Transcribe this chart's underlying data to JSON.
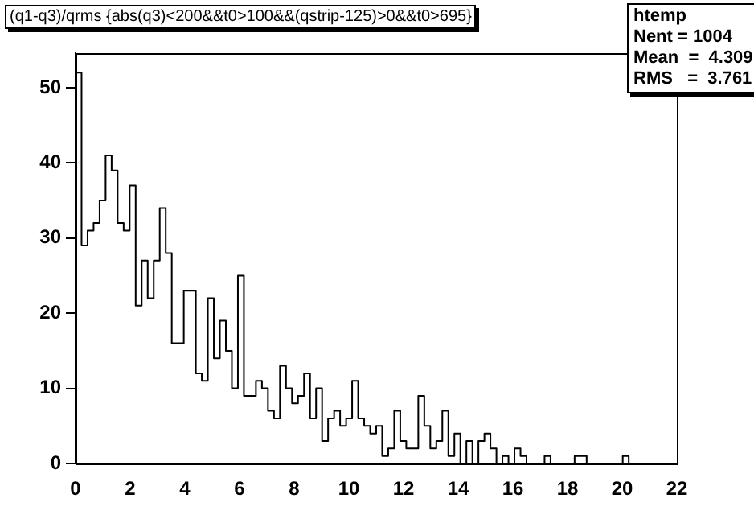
{
  "chart_data": {
    "type": "histogram",
    "title": "(q1-q3)/qrms {abs(q3)<200&&t0>100&&(qstrip-125)>0&&t0>695}",
    "annotations": [
      "htemp",
      "Nent = 1004",
      "Mean  =  4.309",
      "RMS   =  3.761"
    ],
    "color": "#000000",
    "bins": [
      0,
      0.22,
      0.44,
      0.66,
      0.88,
      1.1,
      1.32,
      1.54,
      1.76,
      1.98,
      2.2,
      2.42,
      2.64,
      2.86,
      3.08,
      3.3,
      3.52,
      3.74,
      3.96,
      4.18,
      4.4,
      4.62,
      4.84,
      5.06,
      5.28,
      5.5,
      5.72,
      5.94,
      6.16,
      6.38,
      6.6,
      6.82,
      7.04,
      7.26,
      7.48,
      7.7,
      7.92,
      8.14,
      8.36,
      8.58,
      8.8,
      9.02,
      9.24,
      9.46,
      9.68,
      9.9,
      10.12,
      10.34,
      10.56,
      10.78,
      11,
      11.22,
      11.44,
      11.66,
      11.88,
      12.1,
      12.32,
      12.54,
      12.76,
      12.98,
      13.2,
      13.42,
      13.64,
      13.86,
      14.08,
      14.3,
      14.52,
      14.74,
      14.96,
      15.18,
      15.4,
      15.62,
      15.84,
      16.06,
      16.28,
      16.5,
      16.72,
      16.94,
      17.16,
      17.38,
      17.6,
      17.82,
      18.04,
      18.26,
      18.48,
      18.7,
      18.92,
      19.14,
      19.36,
      19.58,
      19.8,
      20.02,
      20.24,
      20.46,
      20.68,
      20.9,
      21.12,
      21.34,
      21.56,
      21.78,
      22
    ],
    "values": [
      52,
      29,
      31,
      32,
      35,
      41,
      39,
      32,
      31,
      37,
      21,
      27,
      22,
      27,
      34,
      28,
      16,
      16,
      23,
      23,
      12,
      11,
      22,
      14,
      19,
      15,
      10,
      25,
      9,
      9,
      11,
      10,
      7,
      6,
      13,
      10,
      8,
      9,
      12,
      6,
      10,
      3,
      6,
      7,
      5,
      6,
      11,
      6,
      5,
      4,
      5,
      1,
      2,
      7,
      3,
      2,
      2,
      9,
      5,
      2,
      3,
      7,
      1,
      4,
      0,
      3,
      0,
      3,
      4,
      2,
      0,
      1,
      0,
      2,
      1,
      0,
      0,
      0,
      1,
      0,
      0,
      0,
      0,
      1,
      1,
      0,
      0,
      0,
      0,
      0,
      0,
      1,
      0,
      0,
      0,
      0,
      0,
      0,
      0,
      0
    ],
    "xlim": [
      0,
      22
    ],
    "xticks": [
      0,
      2,
      4,
      6,
      8,
      10,
      12,
      14,
      16,
      18,
      20,
      22
    ],
    "ylim": [
      0,
      54.6
    ],
    "yticks": [
      0,
      10,
      20,
      30,
      40,
      50
    ],
    "grid": false,
    "legend": false
  }
}
